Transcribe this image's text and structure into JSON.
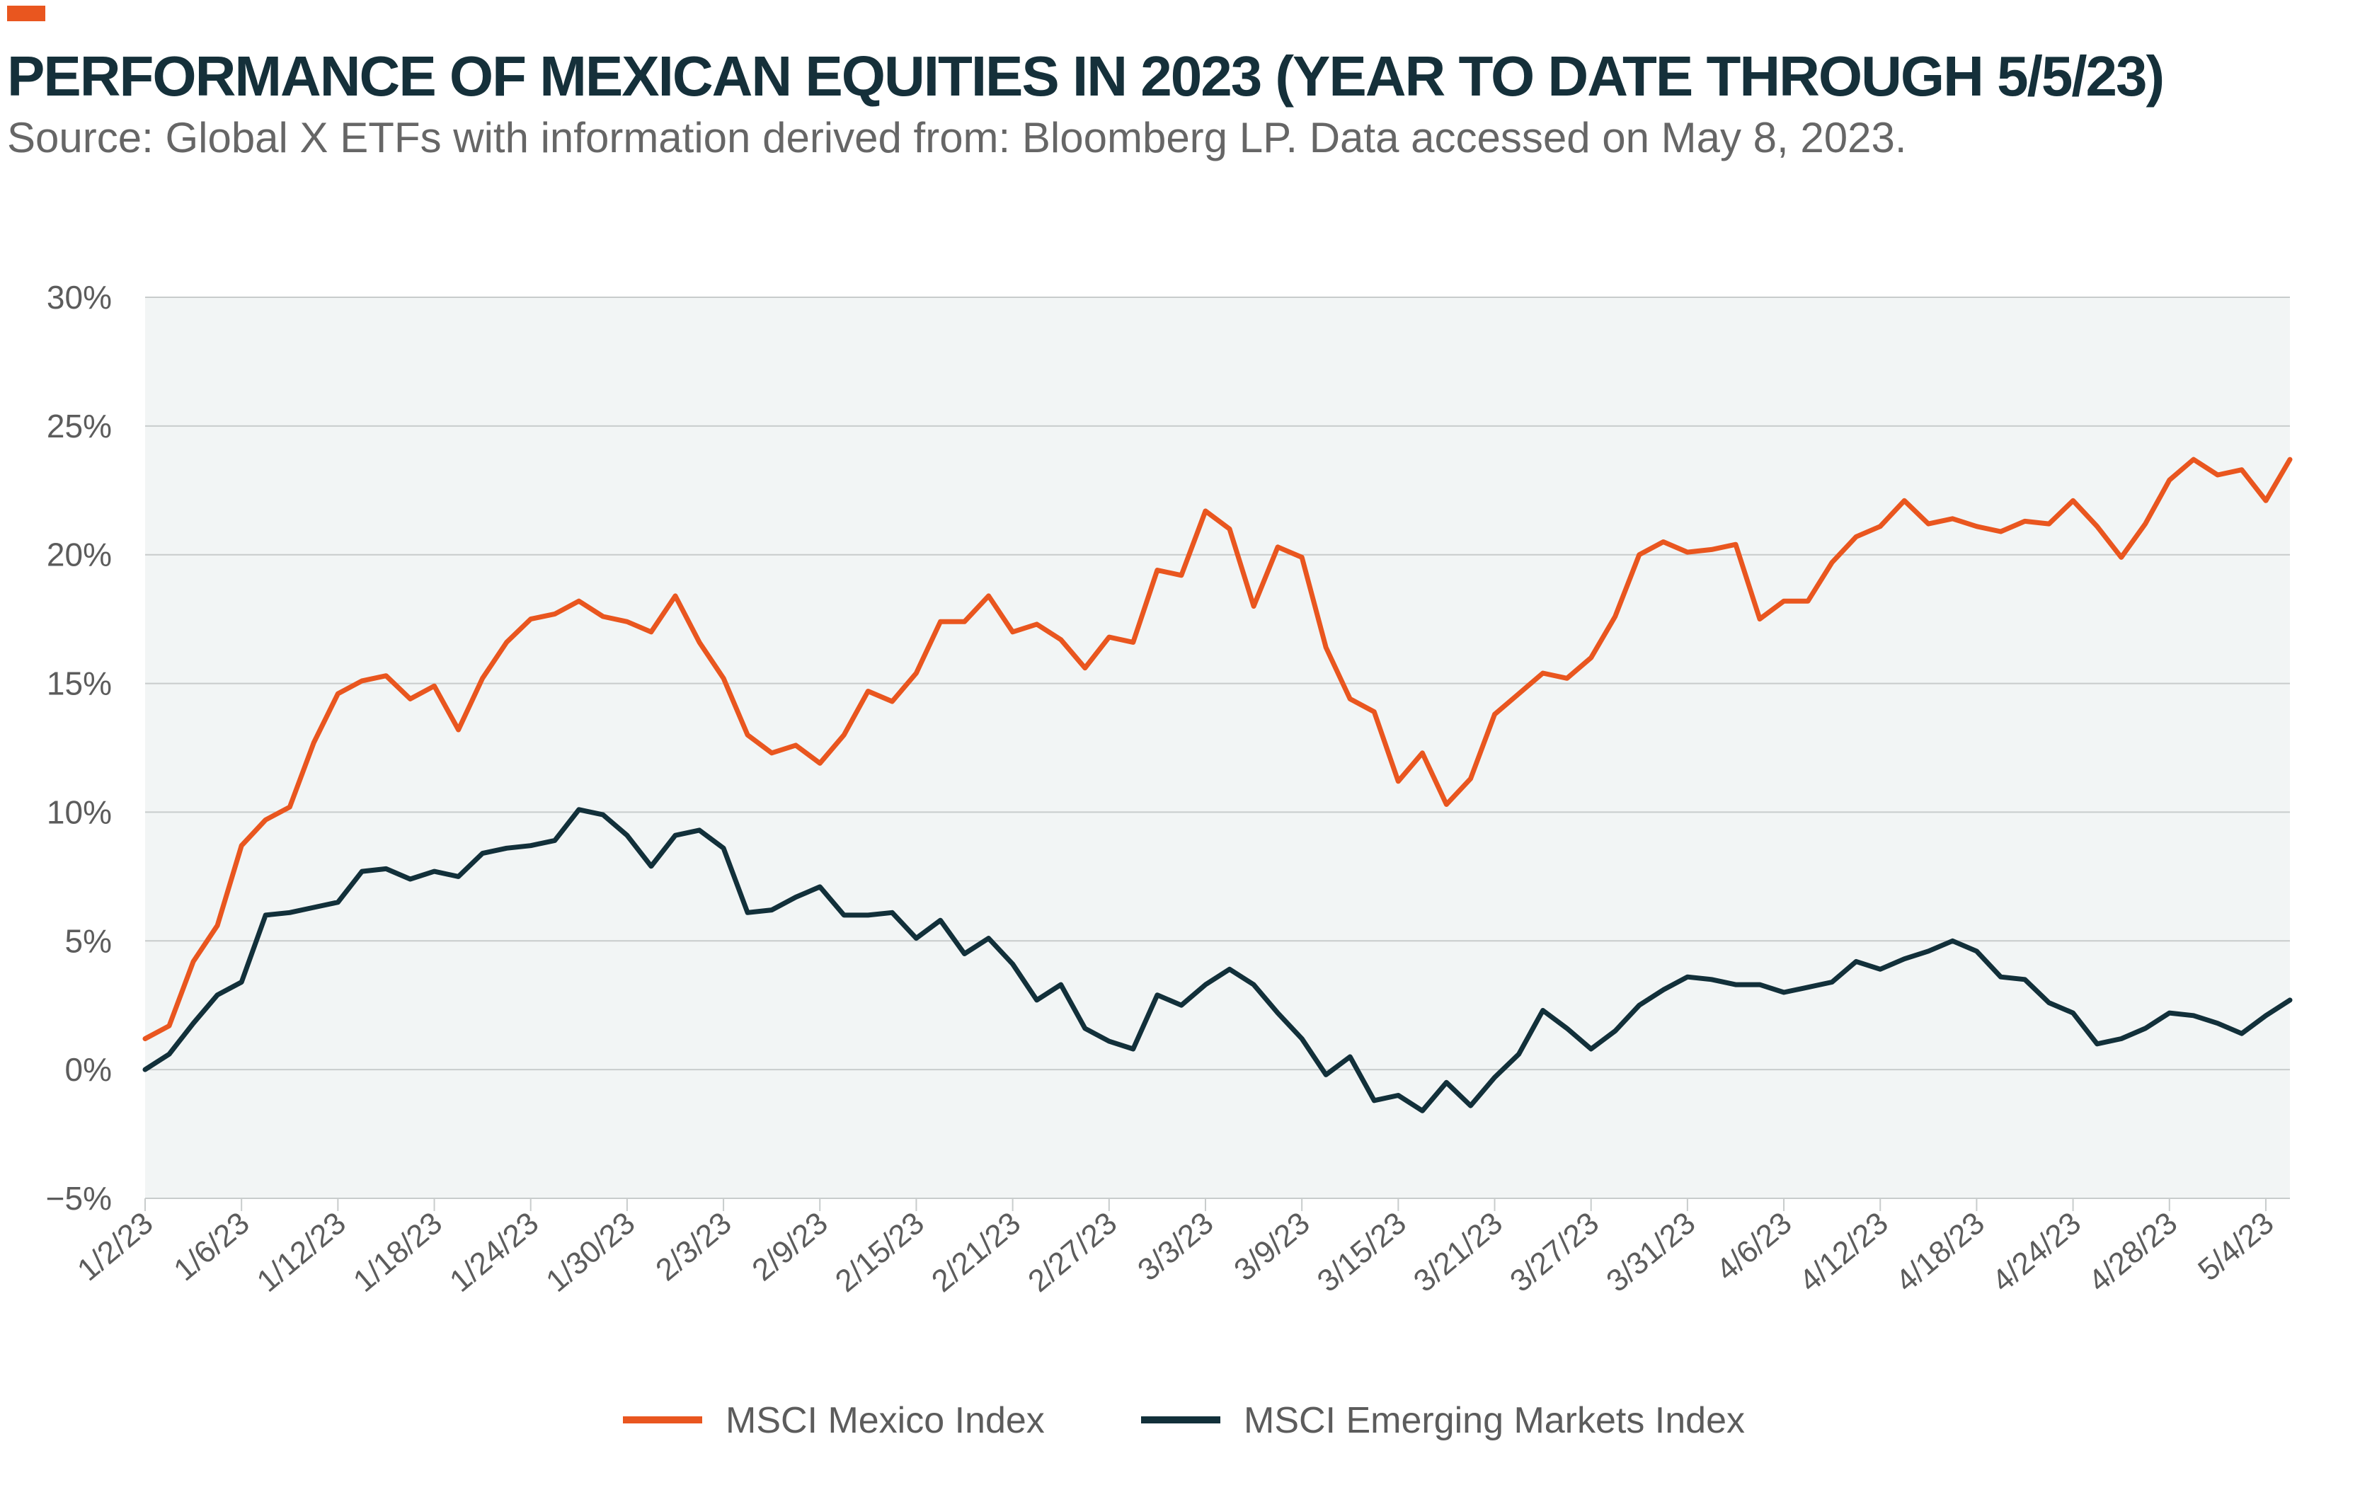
{
  "header": {
    "title": "PERFORMANCE OF MEXICAN EQUITIES IN 2023 (YEAR TO DATE THROUGH 5/5/23)",
    "subtitle": "Source: Global X ETFs with information derived from: Bloomberg LP. Data accessed on May 8, 2023."
  },
  "colors": {
    "mexico": "#e9561f",
    "em": "#12303a",
    "plot_bg": "#f2f5f5",
    "grid": "#c8cccc",
    "accent": "#e9561f"
  },
  "chart_data": {
    "type": "line",
    "title": "PERFORMANCE OF MEXICAN EQUITIES IN 2023 (YEAR TO DATE THROUGH 5/5/23)",
    "xlabel": "",
    "ylabel": "",
    "ylim": [
      -5,
      30
    ],
    "yticks": [
      -5,
      0,
      5,
      10,
      15,
      20,
      25,
      30
    ],
    "ytick_labels": [
      "−5%",
      "0%",
      "5%",
      "10%",
      "15%",
      "20%",
      "25%",
      "30%"
    ],
    "xtick_labels": [
      "1/2/23",
      "1/6/23",
      "1/12/23",
      "1/18/23",
      "1/24/23",
      "1/30/23",
      "2/3/23",
      "2/9/23",
      "2/15/23",
      "2/21/23",
      "2/27/23",
      "3/3/23",
      "3/9/23",
      "3/15/23",
      "3/21/23",
      "3/27/23",
      "3/31/23",
      "4/6/23",
      "4/12/23",
      "4/18/23",
      "4/24/23",
      "4/28/23",
      "5/4/23"
    ],
    "xtick_index": [
      0,
      4,
      8,
      12,
      16,
      20,
      24,
      28,
      32,
      36,
      40,
      44,
      48,
      52,
      56,
      60,
      64,
      68,
      72,
      76,
      80,
      84,
      88
    ],
    "legend_position": "bottom",
    "grid": true,
    "series": [
      {
        "name": "MSCI Mexico Index",
        "values": [
          1.2,
          1.7,
          4.2,
          5.6,
          8.7,
          9.7,
          10.2,
          12.7,
          14.6,
          15.1,
          15.3,
          14.4,
          14.9,
          13.2,
          15.2,
          16.6,
          17.5,
          17.7,
          18.2,
          17.6,
          17.4,
          17.0,
          18.4,
          16.6,
          15.2,
          13.0,
          12.3,
          12.6,
          11.9,
          13.0,
          14.7,
          14.3,
          15.4,
          17.4,
          17.4,
          18.4,
          17.0,
          17.3,
          16.7,
          15.6,
          16.8,
          16.6,
          19.4,
          19.2,
          21.7,
          21.0,
          18.0,
          20.3,
          19.9,
          16.4,
          14.4,
          13.9,
          11.2,
          12.3,
          10.3,
          11.3,
          13.8,
          14.6,
          15.4,
          15.2,
          16.0,
          17.6,
          20.0,
          20.5,
          20.1,
          20.2,
          20.4,
          17.5,
          18.2,
          18.2,
          19.7,
          20.7,
          21.1,
          22.1,
          21.2,
          21.4,
          21.1,
          20.9,
          21.3,
          21.2,
          22.1,
          21.1,
          19.9,
          21.2,
          22.9,
          23.7,
          23.1,
          23.3,
          22.1,
          23.7
        ]
      },
      {
        "name": "MSCI Emerging Markets Index",
        "values": [
          0.0,
          0.6,
          1.8,
          2.9,
          3.4,
          6.0,
          6.1,
          6.3,
          6.5,
          7.7,
          7.8,
          7.4,
          7.7,
          7.5,
          8.4,
          8.6,
          8.7,
          8.9,
          10.1,
          9.9,
          9.1,
          7.9,
          9.1,
          9.3,
          8.6,
          6.1,
          6.2,
          6.7,
          7.1,
          6.0,
          6.0,
          6.1,
          5.1,
          5.8,
          4.5,
          5.1,
          4.1,
          2.7,
          3.3,
          1.6,
          1.1,
          0.8,
          2.9,
          2.5,
          3.3,
          3.9,
          3.3,
          2.2,
          1.2,
          -0.2,
          0.5,
          -1.2,
          -1.0,
          -1.6,
          -0.5,
          -1.4,
          -0.3,
          0.6,
          2.3,
          1.6,
          0.8,
          1.5,
          2.5,
          3.1,
          3.6,
          3.5,
          3.3,
          3.3,
          3.0,
          3.2,
          3.4,
          4.2,
          3.9,
          4.3,
          4.6,
          5.0,
          4.6,
          3.6,
          3.5,
          2.6,
          2.2,
          1.0,
          1.2,
          1.6,
          2.2,
          2.1,
          1.8,
          1.4,
          2.1,
          2.7
        ]
      }
    ]
  }
}
